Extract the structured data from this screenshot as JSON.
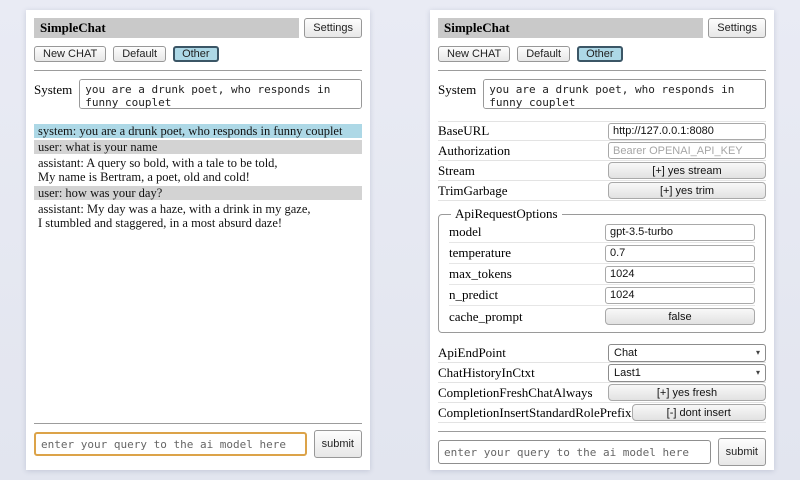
{
  "app": {
    "title": "SimpleChat",
    "settings_button": "Settings",
    "toolbar": {
      "new_chat": "New CHAT",
      "default_session": "Default",
      "other_session": "Other"
    },
    "system_label": "System",
    "system_prompt": "you are a drunk poet, who responds in funny couplet",
    "query_placeholder": "enter your query to the ai model here",
    "submit_label": "submit"
  },
  "chat": {
    "messages": [
      {
        "role": "system",
        "text": "system: you are a drunk poet, who responds in funny couplet"
      },
      {
        "role": "user",
        "text": "user: what is your name"
      },
      {
        "role": "assistant",
        "text": "assistant: A query so bold, with a tale to be told,\nMy name is Bertram, a poet, old and cold!"
      },
      {
        "role": "user",
        "text": "user: how was your day?"
      },
      {
        "role": "assistant",
        "text": "assistant: My day was a haze, with a drink in my gaze,\nI stumbled and staggered, in a most absurd daze!"
      }
    ]
  },
  "settings": {
    "rows": [
      {
        "label": "BaseURL",
        "type": "input",
        "value": "http://127.0.0.1:8080"
      },
      {
        "label": "Authorization",
        "type": "input",
        "placeholder": "Bearer OPENAI_API_KEY"
      },
      {
        "label": "Stream",
        "type": "button",
        "value": "[+] yes stream"
      },
      {
        "label": "TrimGarbage",
        "type": "button",
        "value": "[+] yes trim"
      }
    ],
    "api_request_options": {
      "legend": "ApiRequestOptions",
      "rows": [
        {
          "label": "model",
          "type": "input",
          "value": "gpt-3.5-turbo"
        },
        {
          "label": "temperature",
          "type": "input",
          "value": "0.7"
        },
        {
          "label": "max_tokens",
          "type": "input",
          "value": "1024"
        },
        {
          "label": "n_predict",
          "type": "input",
          "value": "1024"
        },
        {
          "label": "cache_prompt",
          "type": "button",
          "value": "false"
        }
      ]
    },
    "rows_bottom": [
      {
        "label": "ApiEndPoint",
        "type": "select",
        "value": "Chat"
      },
      {
        "label": "ChatHistoryInCtxt",
        "type": "select",
        "value": "Last1"
      },
      {
        "label": "CompletionFreshChatAlways",
        "type": "button",
        "value": "[+] yes fresh"
      },
      {
        "label": "CompletionInsertStandardRolePrefix",
        "type": "button",
        "value": "[-] dont insert"
      }
    ]
  },
  "icons": {
    "chevron_down": "▾"
  },
  "colors": {
    "selected_tab_bg": "#add8e6",
    "system_msg_bg": "#add8e6",
    "user_msg_bg": "#d3d3d3",
    "titlebar_bg": "#c9c9c9",
    "focus_border": "#dca349",
    "page_bg": "#e6e8f1"
  }
}
